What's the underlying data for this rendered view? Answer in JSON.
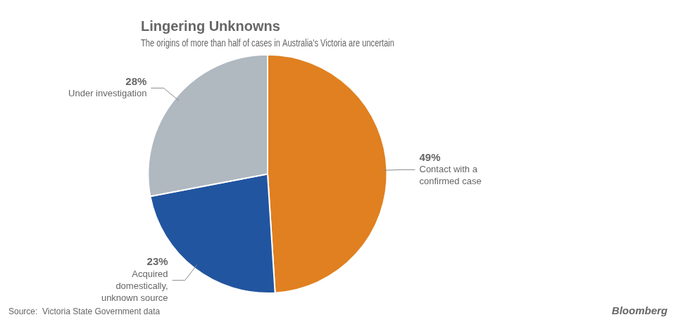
{
  "chart_data": {
    "type": "pie",
    "title": "Lingering Unknowns",
    "subtitle": "The origins of more than half of cases in Australia's Victoria are uncertain",
    "categories": [
      "Contact with a\nconfirmed case",
      "Acquired\ndomestically,\nunknown source",
      "Under investigation"
    ],
    "values": [
      49,
      23,
      28
    ],
    "value_labels": [
      "49%",
      "23%",
      "28%"
    ],
    "colors": [
      "#E08020",
      "#2255A0",
      "#B0B8C0"
    ],
    "data_labels": true,
    "annotations": [
      "Source:  Victoria State Government data",
      "Bloomberg"
    ],
    "legend": false
  }
}
